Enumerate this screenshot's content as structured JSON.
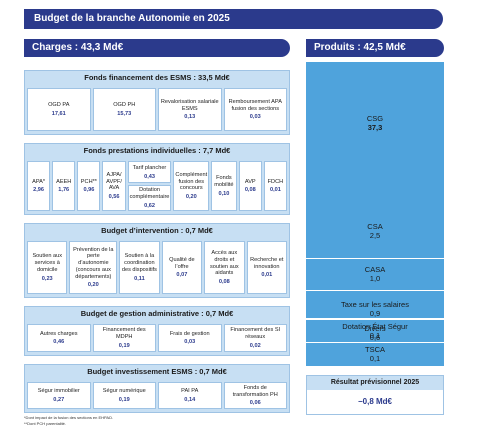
{
  "title": "Budget de la branche Autonomie en 2025",
  "charges_label": "Charges : 43,3 Md€",
  "produits_label": "Produits : 42,5 Md€",
  "sections": {
    "esms": {
      "title": "Fonds financement des ESMS  : 33,5 Md€",
      "cells": [
        {
          "label": "OGD PA",
          "value": "17,61"
        },
        {
          "label": "OGD PH",
          "value": "15,73"
        },
        {
          "label": "Revalorisation salariale ESMS",
          "value": "0,13"
        },
        {
          "label": "Remboursement APA fusion des sections",
          "value": "0,03"
        }
      ]
    },
    "prestations": {
      "title": "Fonds prestations individuelles : 7,7 Md€",
      "apa": {
        "label": "APA*",
        "value": "2,96"
      },
      "aeeh": {
        "label": "AEEH",
        "value": "1,76"
      },
      "pch": {
        "label": "PCH**",
        "value": "0,96"
      },
      "ajpa": {
        "label": "AJPA/ AVPF/ AVA",
        "value": "0,56"
      },
      "tarif": {
        "label": "Tarif plancher",
        "value": "0,43"
      },
      "dotation": {
        "label": "Dotation complémentaire",
        "value": "0,62"
      },
      "complement": {
        "label": "Complément fusion des concours",
        "value": "0,20"
      },
      "mobilite": {
        "label": "Fonds mobilité",
        "value": "0,10"
      },
      "avp": {
        "label": "AVP",
        "value": "0,08"
      },
      "fdch": {
        "label": "FDCH",
        "value": "0,01"
      }
    },
    "intervention": {
      "title": "Budget d’intervention : 0,7 Md€",
      "cells": [
        {
          "label": "Soutien aux services à domicile",
          "value": "0,23"
        },
        {
          "label": "Prévention de la perte d’autonomie (concours aux départements)",
          "value": "0,20"
        },
        {
          "label": "Soutien à la coordination des dispositifs",
          "value": "0,11"
        },
        {
          "label": "Qualité de l’offre",
          "value": "0,07"
        },
        {
          "label": "Accès aux droits et soutien aux aidants",
          "value": "0,08"
        },
        {
          "label": "Recherche et innovation",
          "value": "0,01"
        }
      ]
    },
    "gestion": {
      "title": "Budget de gestion administrative : 0,7 Md€",
      "cells": [
        {
          "label": "Autres charges",
          "value": "0,46"
        },
        {
          "label": "Financement des MDPH",
          "value": "0,19"
        },
        {
          "label": "Frais de gestion",
          "value": "0,03"
        },
        {
          "label": "Financement des SI réseaux",
          "value": "0,02"
        }
      ]
    },
    "investissement": {
      "title": "Budget investissement ESMS : 0,7 Md€",
      "cells": [
        {
          "label": "Ségur immobilier",
          "value": "0,27"
        },
        {
          "label": "Ségur numérique",
          "value": "0,19"
        },
        {
          "label": "PAI PA",
          "value": "0,14"
        },
        {
          "label": "Fonds de transformation PH",
          "value": "0,06"
        }
      ]
    }
  },
  "produits": [
    {
      "label": "CSG",
      "value": "37,3"
    },
    {
      "label": "CSA",
      "value": "2,5"
    },
    {
      "label": "CASA",
      "value": "1,0"
    },
    {
      "label": "Taxe sur les salaires",
      "value": "0,9"
    },
    {
      "label": "Divers",
      "value": "0,6"
    },
    {
      "label": "Dotation État Ségur",
      "value": "0,1"
    },
    {
      "label": "TSCA",
      "value": "0,1"
    }
  ],
  "resultat": {
    "label": "Résultat prévisionnel 2025",
    "value": "−0,8 Md€"
  },
  "footnotes": [
    "*Dont impact de la fusion des sections en EHPAD.",
    "**Dont PCH parentalité."
  ],
  "colors": {
    "navy": "#2b3a8c",
    "light_blue": "#c7dff3",
    "mid_blue": "#4fa3dc"
  }
}
